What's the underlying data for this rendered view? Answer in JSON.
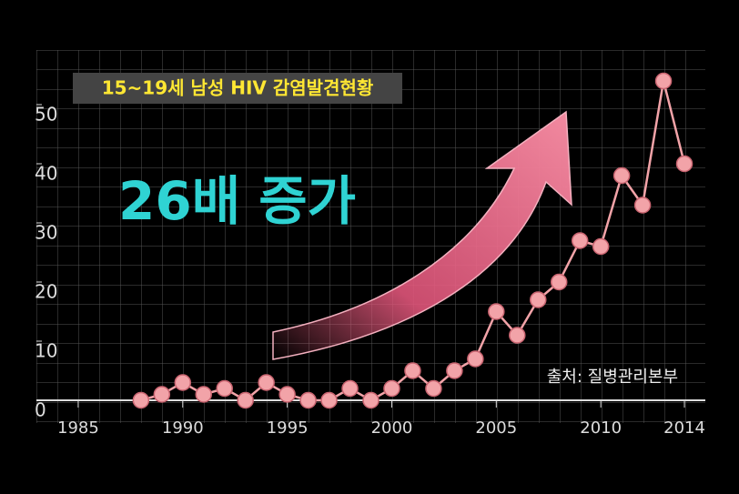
{
  "chart_data": {
    "type": "line",
    "title": "15~19세 남성 HIV 감염발견현황",
    "annotation": "26배 증가",
    "source": "출처: 질병관리본부",
    "x": [
      1988,
      1989,
      1990,
      1991,
      1992,
      1993,
      1994,
      1995,
      1996,
      1997,
      1998,
      1999,
      2000,
      2001,
      2002,
      2003,
      2004,
      2005,
      2006,
      2007,
      2008,
      2009,
      2010,
      2011,
      2012,
      2013,
      2014
    ],
    "series": [
      {
        "color": "#f2a3a8",
        "values": [
          0,
          1,
          3,
          1,
          2,
          0,
          3,
          1,
          0,
          0,
          2,
          0,
          2,
          5,
          2,
          5,
          7,
          15,
          11,
          17,
          20,
          27,
          26,
          38,
          33,
          54,
          40
        ]
      }
    ],
    "xlim": [
      1983,
      2015
    ],
    "xticks": [
      1985,
      1990,
      1995,
      2000,
      2005,
      2010,
      2014
    ],
    "ylim": [
      0,
      58
    ],
    "yticks": [
      0,
      10,
      20,
      30,
      40,
      50
    ]
  }
}
